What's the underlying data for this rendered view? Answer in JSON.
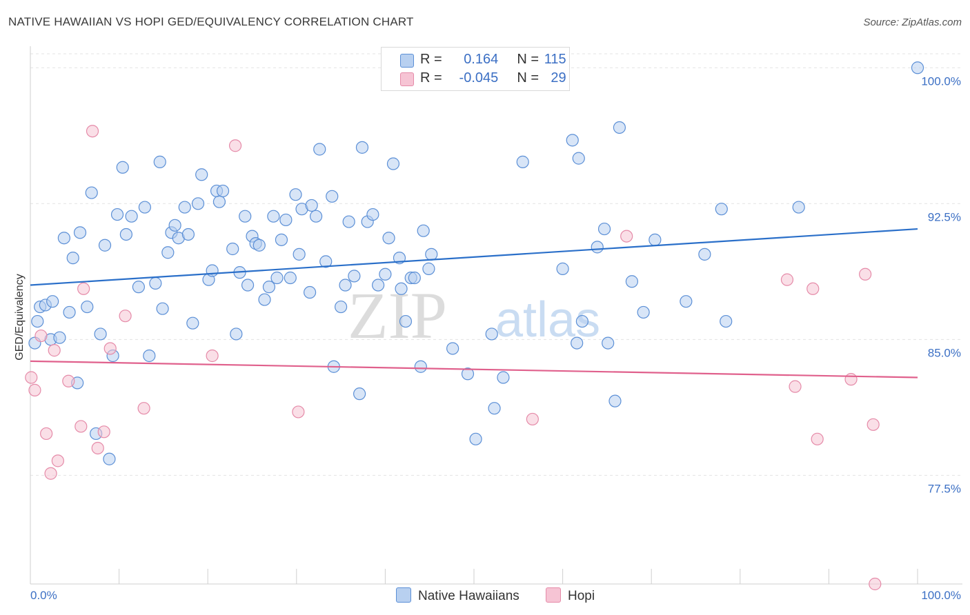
{
  "title": "NATIVE HAWAIIAN VS HOPI GED/EQUIVALENCY CORRELATION CHART",
  "source": "Source: ZipAtlas.com",
  "watermark": {
    "zip": "ZIP",
    "atlas": "atlas"
  },
  "colors": {
    "blue": "#5b8fd6",
    "blue_fill": "#b8d0f0",
    "blue_line": "#2a6fc9",
    "pink": "#e58aa8",
    "pink_fill": "#f6c4d4",
    "pink_line": "#e0608c",
    "axis_text": "#3b6fc4",
    "grid": "#e3e3e3"
  },
  "legend": {
    "rows": [
      {
        "r_label": "R =",
        "r_value": "0.164",
        "n_label": "N =",
        "n_value": "115"
      },
      {
        "r_label": "R =",
        "r_value": "-0.045",
        "n_label": "N =",
        "n_value": "29"
      }
    ]
  },
  "bottom_legend": [
    "Native Hawaiians",
    "Hopi"
  ],
  "chart_data": {
    "type": "scatter",
    "title": "NATIVE HAWAIIAN VS HOPI GED/EQUIVALENCY CORRELATION CHART",
    "xlabel": "",
    "ylabel": "GED/Equivalency",
    "xlim": [
      0,
      100
    ],
    "ylim": [
      71.5,
      101.0
    ],
    "x_tick_labels": [
      "0.0%",
      "100.0%"
    ],
    "y_ticks": [
      77.5,
      85.0,
      92.5,
      100.0
    ],
    "y_tick_labels": [
      "77.5%",
      "85.0%",
      "92.5%",
      "100.0%"
    ],
    "grid": "horizontal dashed",
    "legend_position": "top-center",
    "series": [
      {
        "name": "Native Hawaiians",
        "r": 0.164,
        "n": 115,
        "trend": {
          "x": [
            0,
            100
          ],
          "y": [
            88.0,
            91.1
          ]
        },
        "points": [
          [
            0.5,
            84.8
          ],
          [
            0.8,
            86.0
          ],
          [
            1.1,
            86.8
          ],
          [
            1.7,
            86.9
          ],
          [
            2.3,
            85.0
          ],
          [
            2.5,
            87.1
          ],
          [
            3.3,
            85.1
          ],
          [
            3.8,
            90.6
          ],
          [
            4.4,
            86.5
          ],
          [
            4.8,
            89.5
          ],
          [
            5.3,
            82.6
          ],
          [
            5.6,
            90.9
          ],
          [
            6.4,
            86.8
          ],
          [
            6.9,
            93.1
          ],
          [
            7.4,
            79.8
          ],
          [
            7.9,
            85.3
          ],
          [
            8.4,
            90.2
          ],
          [
            8.9,
            78.4
          ],
          [
            9.3,
            84.1
          ],
          [
            9.8,
            91.9
          ],
          [
            10.4,
            94.5
          ],
          [
            10.8,
            90.8
          ],
          [
            11.4,
            91.8
          ],
          [
            12.2,
            87.9
          ],
          [
            12.9,
            92.3
          ],
          [
            13.4,
            84.1
          ],
          [
            14.1,
            88.1
          ],
          [
            14.6,
            94.8
          ],
          [
            14.9,
            86.7
          ],
          [
            15.5,
            89.8
          ],
          [
            15.9,
            90.9
          ],
          [
            16.3,
            91.3
          ],
          [
            16.7,
            90.6
          ],
          [
            17.4,
            92.3
          ],
          [
            17.8,
            90.8
          ],
          [
            18.3,
            85.9
          ],
          [
            18.9,
            92.5
          ],
          [
            19.3,
            94.1
          ],
          [
            20.1,
            88.3
          ],
          [
            20.5,
            88.8
          ],
          [
            21.0,
            93.2
          ],
          [
            21.3,
            92.6
          ],
          [
            21.7,
            93.2
          ],
          [
            22.8,
            90.0
          ],
          [
            23.2,
            85.3
          ],
          [
            23.6,
            88.7
          ],
          [
            24.2,
            91.8
          ],
          [
            24.5,
            88.0
          ],
          [
            25.0,
            90.7
          ],
          [
            25.4,
            90.3
          ],
          [
            25.8,
            90.2
          ],
          [
            26.4,
            87.2
          ],
          [
            26.9,
            87.9
          ],
          [
            27.4,
            91.8
          ],
          [
            27.8,
            88.4
          ],
          [
            28.3,
            90.5
          ],
          [
            28.8,
            91.6
          ],
          [
            29.3,
            88.4
          ],
          [
            29.9,
            93.0
          ],
          [
            30.3,
            89.7
          ],
          [
            30.6,
            92.2
          ],
          [
            31.5,
            87.6
          ],
          [
            31.7,
            92.4
          ],
          [
            32.2,
            91.8
          ],
          [
            32.6,
            95.5
          ],
          [
            33.3,
            89.3
          ],
          [
            34.0,
            92.9
          ],
          [
            34.2,
            83.5
          ],
          [
            35.0,
            86.8
          ],
          [
            35.5,
            88.0
          ],
          [
            35.9,
            91.5
          ],
          [
            36.5,
            88.5
          ],
          [
            37.1,
            82.0
          ],
          [
            37.4,
            95.6
          ],
          [
            38.0,
            91.5
          ],
          [
            38.6,
            91.9
          ],
          [
            39.2,
            88.0
          ],
          [
            40.0,
            88.6
          ],
          [
            40.4,
            90.6
          ],
          [
            40.9,
            94.7
          ],
          [
            41.6,
            89.5
          ],
          [
            41.8,
            87.8
          ],
          [
            42.3,
            86.0
          ],
          [
            42.9,
            88.4
          ],
          [
            43.3,
            88.4
          ],
          [
            44.0,
            83.5
          ],
          [
            44.3,
            91.0
          ],
          [
            44.9,
            88.9
          ],
          [
            45.2,
            89.7
          ],
          [
            47.6,
            84.5
          ],
          [
            49.3,
            83.1
          ],
          [
            50.2,
            79.5
          ],
          [
            52.0,
            85.3
          ],
          [
            52.3,
            81.2
          ],
          [
            53.3,
            82.9
          ],
          [
            55.5,
            94.8
          ],
          [
            60.0,
            88.9
          ],
          [
            61.1,
            96.0
          ],
          [
            61.6,
            84.8
          ],
          [
            61.8,
            95.0
          ],
          [
            62.2,
            86.0
          ],
          [
            63.9,
            90.1
          ],
          [
            64.7,
            91.1
          ],
          [
            65.1,
            84.8
          ],
          [
            65.9,
            81.6
          ],
          [
            66.4,
            96.7
          ],
          [
            67.8,
            88.2
          ],
          [
            69.1,
            86.5
          ],
          [
            70.4,
            90.5
          ],
          [
            73.9,
            87.1
          ],
          [
            76.0,
            89.7
          ],
          [
            77.9,
            92.2
          ],
          [
            78.4,
            86.0
          ],
          [
            86.6,
            92.3
          ],
          [
            100.0,
            100.0
          ]
        ]
      },
      {
        "name": "Hopi",
        "r": -0.045,
        "n": 29,
        "trend": {
          "x": [
            0,
            100
          ],
          "y": [
            83.8,
            82.9
          ]
        },
        "points": [
          [
            0.1,
            82.9
          ],
          [
            0.5,
            82.2
          ],
          [
            1.2,
            85.2
          ],
          [
            1.8,
            79.8
          ],
          [
            2.3,
            77.6
          ],
          [
            2.7,
            84.4
          ],
          [
            3.1,
            78.3
          ],
          [
            4.3,
            82.7
          ],
          [
            5.7,
            80.2
          ],
          [
            6.0,
            87.8
          ],
          [
            7.0,
            96.5
          ],
          [
            7.6,
            79.0
          ],
          [
            8.3,
            79.9
          ],
          [
            9.0,
            84.5
          ],
          [
            10.7,
            86.3
          ],
          [
            12.8,
            81.2
          ],
          [
            20.5,
            84.1
          ],
          [
            23.1,
            95.7
          ],
          [
            30.2,
            81.0
          ],
          [
            56.6,
            80.6
          ],
          [
            67.2,
            90.7
          ],
          [
            85.3,
            88.3
          ],
          [
            86.2,
            82.4
          ],
          [
            88.2,
            87.8
          ],
          [
            88.7,
            79.5
          ],
          [
            92.5,
            82.8
          ],
          [
            94.1,
            88.6
          ],
          [
            95.0,
            80.3
          ],
          [
            95.2,
            71.5
          ]
        ]
      }
    ]
  }
}
